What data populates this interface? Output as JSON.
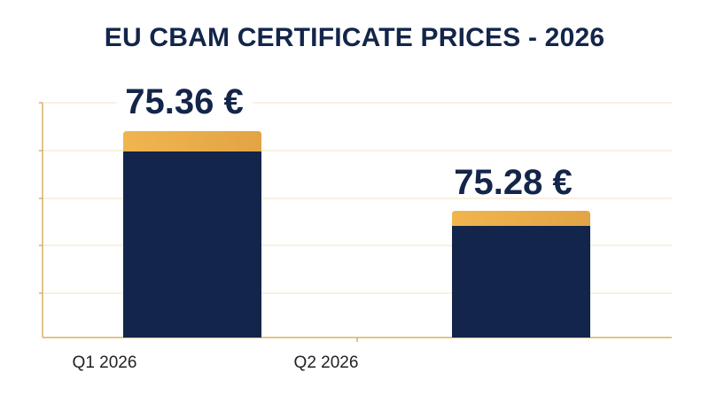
{
  "chart_data": {
    "type": "bar",
    "title": "EU CBAM CERTIFICATE PRICES - 2026",
    "categories": [
      "Q1 2026",
      "Q2 2026"
    ],
    "values": [
      75.36,
      75.28
    ],
    "value_labels": [
      "75.36 €",
      "75.28 €"
    ],
    "xlabel": "",
    "ylabel": "",
    "grid": true,
    "colors": {
      "bar": "#13254a",
      "bar_cap": "#e8ac49",
      "grid": "#f2e3c2",
      "axis": "#d7b265",
      "text": "#13254a"
    }
  }
}
